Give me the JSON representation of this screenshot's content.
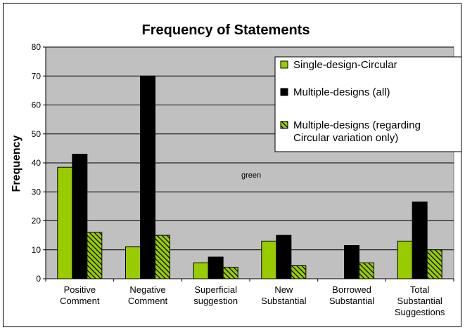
{
  "chart_data": {
    "type": "bar",
    "title": "Frequency of Statements",
    "xlabel": "",
    "ylabel": "Frequency",
    "ylim": [
      0,
      80
    ],
    "yticks": [
      0,
      10,
      20,
      30,
      40,
      50,
      60,
      70,
      80
    ],
    "grid": true,
    "legend_position": "top-right",
    "annotation": "green",
    "categories": [
      [
        "Positive",
        "Comment"
      ],
      [
        "Negative",
        "Comment"
      ],
      [
        "Superficial",
        "suggestion"
      ],
      [
        "New",
        "Substantial"
      ],
      [
        "Borrowed",
        "Substantial"
      ],
      [
        "Total",
        "Substantial",
        "Suggestions"
      ]
    ],
    "series": [
      {
        "name": "Single-design-Circular",
        "values": [
          38.5,
          11,
          5.5,
          13,
          null,
          13
        ],
        "color": "#99cc00",
        "pattern": "solid"
      },
      {
        "name": "Multiple-designs (all)",
        "values": [
          43,
          70,
          7.5,
          15,
          11.5,
          26.5
        ],
        "color": "#000000",
        "pattern": "solid"
      },
      {
        "name": "Multiple-designs (regarding Circular variation only)",
        "legend_lines": [
          "Multiple-designs (regarding",
          "Circular variation only)"
        ],
        "values": [
          16,
          15,
          4,
          4.5,
          5.5,
          10
        ],
        "color": "#99cc00",
        "pattern": "hatch"
      }
    ],
    "colors": {
      "plot_background": "#c0c0c0",
      "gridline": "#000000"
    }
  }
}
